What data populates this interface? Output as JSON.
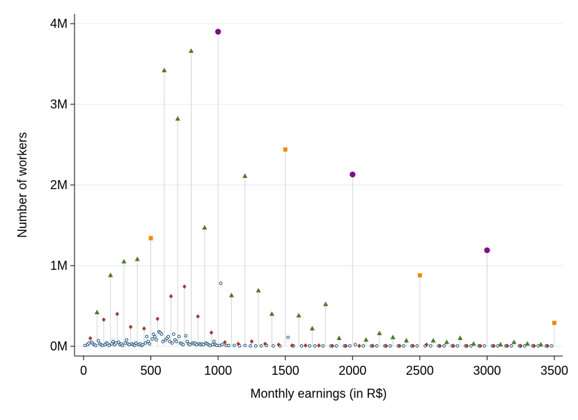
{
  "chart_data": {
    "type": "scatter",
    "title": "",
    "xlabel": "Monthly earnings (in R$)",
    "ylabel": "Number of workers",
    "xlim": [
      0,
      3500
    ],
    "ylim": [
      0,
      4000000
    ],
    "xticks": [
      0,
      500,
      1000,
      1500,
      2000,
      2500,
      3000,
      3500
    ],
    "xtick_labels": [
      "0",
      "500",
      "1000",
      "1500",
      "2000",
      "2500",
      "3000",
      "3500"
    ],
    "yticks": [
      0,
      1000000,
      2000000,
      3000000,
      4000000
    ],
    "ytick_labels": [
      "0M",
      "1M",
      "2M",
      "3M",
      "4M"
    ],
    "grid": "horizontal",
    "legend": "none",
    "colors": {
      "circle_purple": "#7f0f86",
      "square_orange": "#f08a00",
      "triangle_green": "#4f7a28",
      "diamond_red": "#a13a37",
      "hollow_blue": "#1a4f7a",
      "stem": "#d4d4d4",
      "grid": "#e8eef2"
    },
    "series": [
      {
        "marker": "circle",
        "values": [
          [
            1000,
            3900000
          ],
          [
            2000,
            2130000
          ],
          [
            3000,
            1190000
          ]
        ]
      },
      {
        "marker": "square",
        "values": [
          [
            500,
            1340000
          ],
          [
            1500,
            2440000
          ],
          [
            2500,
            880000
          ],
          [
            3500,
            290000
          ]
        ]
      },
      {
        "marker": "triangle",
        "values": [
          [
            100,
            420000
          ],
          [
            200,
            880000
          ],
          [
            300,
            1050000
          ],
          [
            400,
            1080000
          ],
          [
            600,
            3420000
          ],
          [
            700,
            2820000
          ],
          [
            800,
            3660000
          ],
          [
            900,
            1470000
          ],
          [
            1100,
            630000
          ],
          [
            1200,
            2110000
          ],
          [
            1300,
            690000
          ],
          [
            1400,
            400000
          ],
          [
            1600,
            380000
          ],
          [
            1700,
            220000
          ],
          [
            1800,
            520000
          ],
          [
            1900,
            100000
          ],
          [
            2100,
            80000
          ],
          [
            2200,
            160000
          ],
          [
            2300,
            110000
          ],
          [
            2400,
            70000
          ],
          [
            2600,
            70000
          ],
          [
            2700,
            50000
          ],
          [
            2800,
            100000
          ],
          [
            2900,
            30000
          ],
          [
            3100,
            20000
          ],
          [
            3200,
            50000
          ],
          [
            3300,
            30000
          ],
          [
            3400,
            20000
          ]
        ]
      },
      {
        "marker": "diamond",
        "values": [
          [
            50,
            100000
          ],
          [
            150,
            330000
          ],
          [
            250,
            400000
          ],
          [
            350,
            240000
          ],
          [
            450,
            220000
          ],
          [
            550,
            340000
          ],
          [
            650,
            620000
          ],
          [
            750,
            740000
          ],
          [
            850,
            370000
          ],
          [
            950,
            170000
          ],
          [
            1050,
            50000
          ],
          [
            1150,
            30000
          ],
          [
            1250,
            60000
          ],
          [
            1350,
            30000
          ],
          [
            1450,
            20000
          ],
          [
            1550,
            10000
          ],
          [
            1650,
            10000
          ],
          [
            1750,
            10000
          ],
          [
            1850,
            5000
          ],
          [
            1950,
            5000
          ],
          [
            2050,
            5000
          ],
          [
            2150,
            5000
          ],
          [
            2250,
            5000
          ],
          [
            2350,
            5000
          ],
          [
            2450,
            5000
          ],
          [
            2550,
            20000
          ],
          [
            2650,
            5000
          ],
          [
            2750,
            5000
          ],
          [
            2850,
            5000
          ],
          [
            2950,
            5000
          ],
          [
            3050,
            5000
          ],
          [
            3150,
            5000
          ],
          [
            3250,
            5000
          ],
          [
            3350,
            5000
          ],
          [
            3450,
            5000
          ]
        ]
      },
      {
        "marker": "hollow-circle",
        "values": [
          [
            10,
            10000
          ],
          [
            30,
            20000
          ],
          [
            40,
            40000
          ],
          [
            60,
            50000
          ],
          [
            70,
            30000
          ],
          [
            80,
            20000
          ],
          [
            90,
            10000
          ],
          [
            110,
            70000
          ],
          [
            120,
            30000
          ],
          [
            130,
            20000
          ],
          [
            140,
            10000
          ],
          [
            160,
            20000
          ],
          [
            170,
            40000
          ],
          [
            180,
            30000
          ],
          [
            190,
            10000
          ],
          [
            210,
            30000
          ],
          [
            220,
            60000
          ],
          [
            230,
            20000
          ],
          [
            240,
            40000
          ],
          [
            260,
            50000
          ],
          [
            270,
            20000
          ],
          [
            280,
            30000
          ],
          [
            290,
            10000
          ],
          [
            310,
            40000
          ],
          [
            320,
            80000
          ],
          [
            330,
            30000
          ],
          [
            340,
            20000
          ],
          [
            360,
            30000
          ],
          [
            370,
            20000
          ],
          [
            380,
            10000
          ],
          [
            390,
            40000
          ],
          [
            410,
            20000
          ],
          [
            420,
            30000
          ],
          [
            430,
            10000
          ],
          [
            440,
            20000
          ],
          [
            460,
            40000
          ],
          [
            470,
            120000
          ],
          [
            480,
            60000
          ],
          [
            490,
            30000
          ],
          [
            510,
            90000
          ],
          [
            520,
            150000
          ],
          [
            530,
            120000
          ],
          [
            540,
            80000
          ],
          [
            560,
            180000
          ],
          [
            570,
            170000
          ],
          [
            580,
            150000
          ],
          [
            590,
            60000
          ],
          [
            610,
            80000
          ],
          [
            620,
            100000
          ],
          [
            630,
            120000
          ],
          [
            640,
            60000
          ],
          [
            660,
            40000
          ],
          [
            670,
            150000
          ],
          [
            680,
            80000
          ],
          [
            690,
            60000
          ],
          [
            710,
            120000
          ],
          [
            720,
            40000
          ],
          [
            730,
            30000
          ],
          [
            740,
            20000
          ],
          [
            760,
            130000
          ],
          [
            770,
            60000
          ],
          [
            780,
            30000
          ],
          [
            790,
            20000
          ],
          [
            810,
            40000
          ],
          [
            820,
            30000
          ],
          [
            830,
            40000
          ],
          [
            840,
            20000
          ],
          [
            860,
            30000
          ],
          [
            870,
            20000
          ],
          [
            880,
            30000
          ],
          [
            890,
            20000
          ],
          [
            910,
            40000
          ],
          [
            920,
            30000
          ],
          [
            930,
            20000
          ],
          [
            940,
            10000
          ],
          [
            960,
            20000
          ],
          [
            970,
            60000
          ],
          [
            980,
            20000
          ],
          [
            990,
            10000
          ],
          [
            1010,
            10000
          ],
          [
            1020,
            780000
          ],
          [
            1030,
            20000
          ],
          [
            1060,
            10000
          ],
          [
            1080,
            10000
          ],
          [
            1120,
            10000
          ],
          [
            1160,
            5000
          ],
          [
            1200,
            10000
          ],
          [
            1240,
            5000
          ],
          [
            1280,
            5000
          ],
          [
            1320,
            5000
          ],
          [
            1360,
            10000
          ],
          [
            1410,
            5000
          ],
          [
            1460,
            5000
          ],
          [
            1520,
            110000
          ],
          [
            1560,
            5000
          ],
          [
            1620,
            5000
          ],
          [
            1680,
            5000
          ],
          [
            1720,
            5000
          ],
          [
            1780,
            5000
          ],
          [
            1840,
            5000
          ],
          [
            1880,
            5000
          ],
          [
            1940,
            5000
          ],
          [
            1980,
            5000
          ],
          [
            2020,
            20000
          ],
          [
            2080,
            5000
          ],
          [
            2140,
            5000
          ],
          [
            2180,
            5000
          ],
          [
            2240,
            5000
          ],
          [
            2280,
            5000
          ],
          [
            2340,
            5000
          ],
          [
            2380,
            5000
          ],
          [
            2440,
            5000
          ],
          [
            2480,
            5000
          ],
          [
            2540,
            5000
          ],
          [
            2580,
            5000
          ],
          [
            2640,
            5000
          ],
          [
            2680,
            5000
          ],
          [
            2740,
            5000
          ],
          [
            2780,
            5000
          ],
          [
            2840,
            5000
          ],
          [
            2880,
            5000
          ],
          [
            2940,
            5000
          ],
          [
            2980,
            5000
          ],
          [
            3040,
            5000
          ],
          [
            3080,
            5000
          ],
          [
            3140,
            5000
          ],
          [
            3180,
            5000
          ],
          [
            3240,
            5000
          ],
          [
            3280,
            5000
          ],
          [
            3340,
            5000
          ],
          [
            3380,
            5000
          ],
          [
            3440,
            5000
          ],
          [
            3480,
            5000
          ]
        ]
      }
    ]
  }
}
